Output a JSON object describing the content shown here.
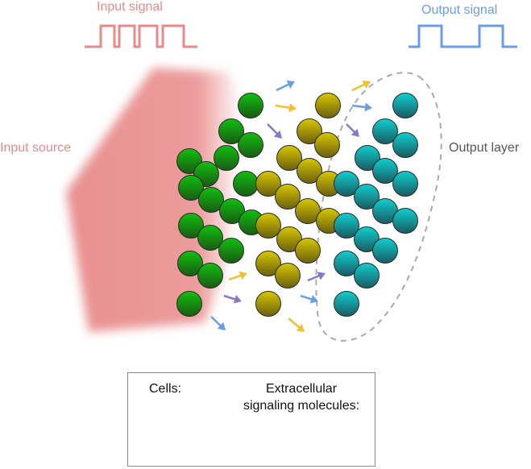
{
  "labels": {
    "input_signal": "Input signal",
    "output_signal": "Output signal",
    "input_source": "Input source",
    "output_layer": "Output layer"
  },
  "legend": {
    "cells_label": "Cells:",
    "molecules_label_line1": "Extracellular",
    "molecules_label_line2": "signaling molecules:"
  },
  "colors": {
    "input": "#e98a8a",
    "output": "#6a9de8",
    "cell_green": "#1a9a10",
    "cell_yellow": "#b8a800",
    "cell_cyan": "#10a8a8",
    "molecule_blue": "#6a9de8",
    "molecule_yellow": "#f0c030",
    "molecule_purple": "#8a78c8",
    "text_dark": "#555555"
  }
}
